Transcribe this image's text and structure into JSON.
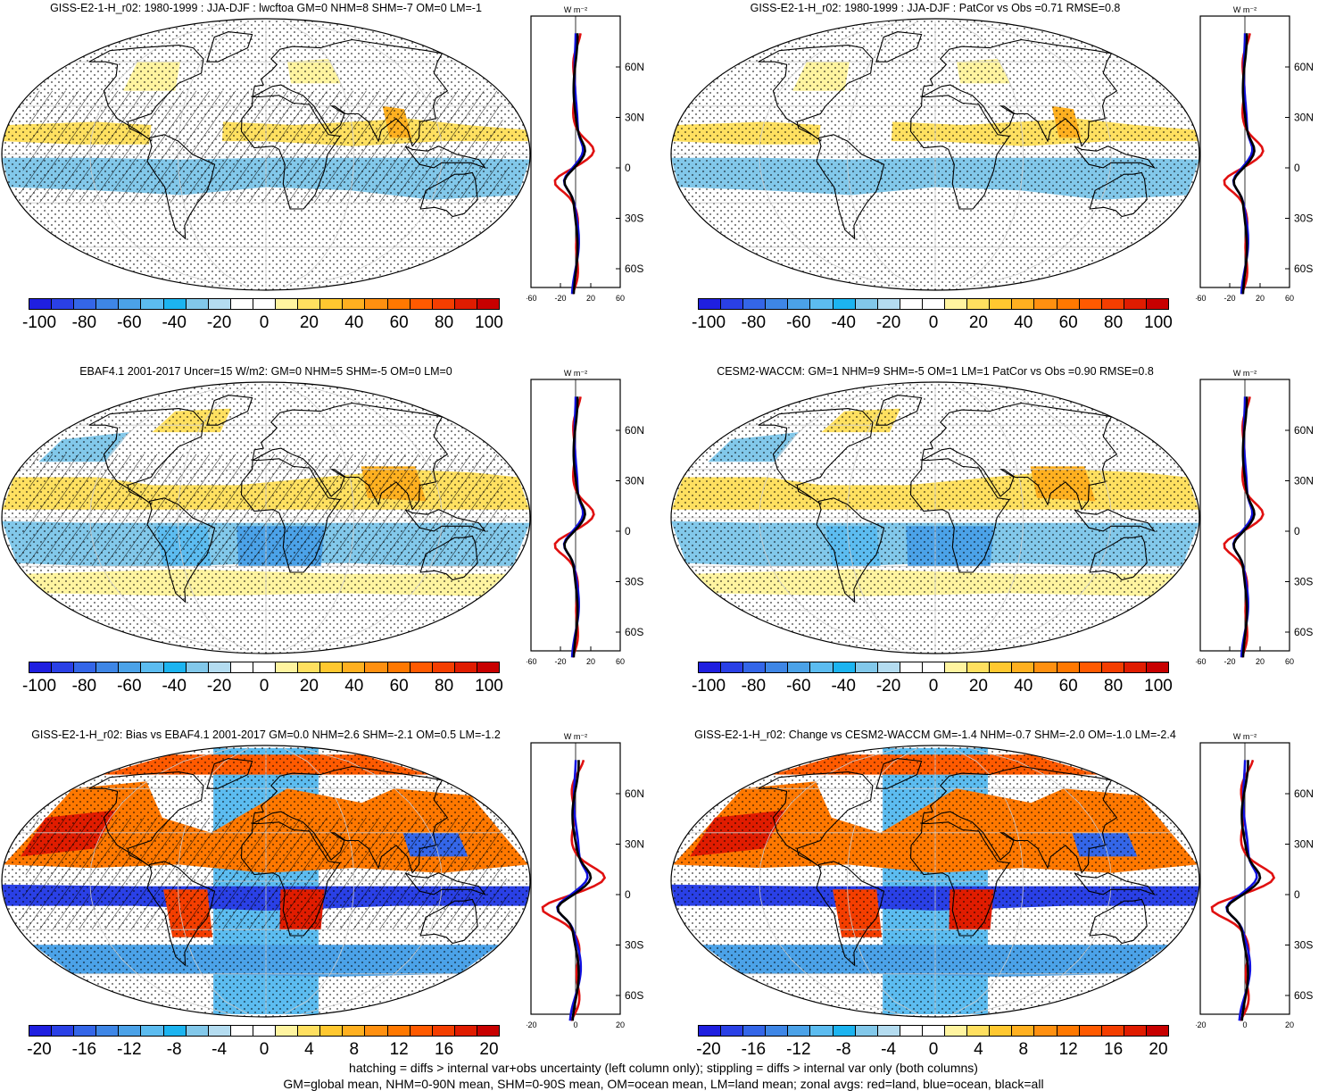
{
  "panels": [
    {
      "id": "p1",
      "title": "GISS-E2-1-H_r02: 1980-1999 : JJA-DJF : lwcftoa GM=0 NHM=8 SHM=-7 OM=0 LM=-1",
      "hatching": true,
      "scale": "small"
    },
    {
      "id": "p2",
      "title": "GISS-E2-1-H_r02: 1980-1999 : JJA-DJF : PatCor vs Obs =0.71 RMSE=0.8",
      "hatching": false,
      "scale": "small"
    },
    {
      "id": "p3",
      "title": "EBAF4.1 2001-2017 Uncer=15 W/m2: GM=0 NHM=5 SHM=-5 OM=0 LM=0",
      "hatching": true,
      "scale": "large_obs"
    },
    {
      "id": "p4",
      "title": "CESM2-WACCM: GM=1 NHM=9 SHM=-5 OM=1 LM=1 PatCor vs Obs =0.90 RMSE=0.8",
      "hatching": false,
      "scale": "large_obs"
    },
    {
      "id": "p5",
      "title": "GISS-E2-1-H_r02: Bias vs EBAF4.1 2001-2017 GM=0.0 NHM=2.6 SHM=-2.1 OM=0.5 LM=-1.2",
      "hatching": true,
      "scale": "bias"
    },
    {
      "id": "p6",
      "title": "GISS-E2-1-H_r02: Change vs CESM2-WACCM GM=-1.4 NHM=-0.7 SHM=-2.0 OM=-1.0 LM=-2.4",
      "hatching": false,
      "scale": "bias"
    }
  ],
  "zonal": {
    "unit_label": "W m⁻²",
    "lat_labels": [
      "60N",
      "30N",
      "0",
      "30S",
      "60S"
    ],
    "xticks_a": [
      "-60",
      "-20",
      "20",
      "60"
    ],
    "xticks_b": [
      "-20",
      "0",
      "20"
    ],
    "xticks_c": [
      "-20",
      "0",
      "20"
    ]
  },
  "colorbars": {
    "main": {
      "labels": [
        "-100",
        "-80",
        "-60",
        "-40",
        "-20",
        "0",
        "20",
        "40",
        "60",
        "80",
        "100"
      ]
    },
    "bias": {
      "labels": [
        "-20",
        "-16",
        "-12",
        "-8",
        "-4",
        "0",
        "4",
        "8",
        "12",
        "16",
        "20"
      ]
    },
    "colors": [
      "#1f1fe0",
      "#2a40e6",
      "#3466e8",
      "#3e86e6",
      "#4ba2e8",
      "#5cbcf0",
      "#1cb4f0",
      "#82c8ea",
      "#b4dcf0",
      "#ffffff",
      "#ffffff",
      "#fff4a0",
      "#ffe060",
      "#ffc830",
      "#ffb020",
      "#ff9010",
      "#ff7800",
      "#ff5a00",
      "#f43e00",
      "#e01c00",
      "#c80000"
    ]
  },
  "footnotes": [
    "hatching = diffs > internal var+obs uncertainty (left column only); stippling = diffs > internal var only (both columns)",
    "GM=global mean, NHM=0-90N mean, SHM=0-90S mean, OM=ocean mean, LM=land mean; zonal avgs: red=land, blue=ocean, black=all"
  ]
}
